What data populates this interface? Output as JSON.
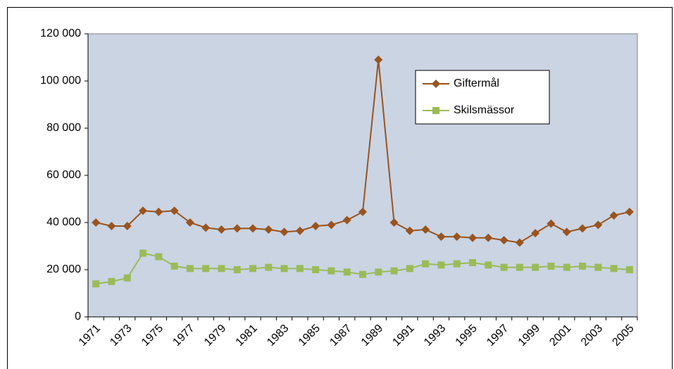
{
  "chart_data": {
    "type": "line",
    "categories": [
      "1971",
      null,
      "1973",
      null,
      "1975",
      null,
      "1977",
      null,
      "1979",
      null,
      "1981",
      null,
      "1983",
      null,
      "1985",
      null,
      "1987",
      null,
      "1989",
      null,
      "1991",
      null,
      "1993",
      null,
      "1995",
      null,
      "1997",
      null,
      "1999",
      null,
      "2001",
      null,
      "2003",
      null,
      "2005"
    ],
    "series": [
      {
        "name": "Giftermål",
        "color": "#99541f",
        "marker": "diamond",
        "values": [
          40000,
          38500,
          38500,
          45000,
          44500,
          45000,
          40000,
          37800,
          37000,
          37500,
          37500,
          37000,
          36000,
          36500,
          38500,
          39000,
          41000,
          44500,
          109000,
          40000,
          36500,
          37000,
          34000,
          34000,
          33500,
          33500,
          32500,
          31500,
          35500,
          39500,
          36000,
          37500,
          39000,
          43000,
          44500
        ]
      },
      {
        "name": "Skilsmässor",
        "color": "#9bbb59",
        "marker": "square",
        "values": [
          14000,
          15000,
          16500,
          27000,
          25500,
          21500,
          20500,
          20500,
          20500,
          20000,
          20500,
          21000,
          20500,
          20500,
          20000,
          19500,
          19000,
          18000,
          19000,
          19500,
          20500,
          22500,
          22000,
          22500,
          23000,
          22000,
          21000,
          21000,
          21000,
          21500,
          21000,
          21500,
          21000,
          20500,
          20000
        ]
      }
    ],
    "ylim": [
      0,
      120000
    ],
    "yticks": [
      0,
      {
        "value": 20000,
        "label": "20 000"
      },
      {
        "value": 40000,
        "label": "40 000"
      },
      {
        "value": 60000,
        "label": "60 000"
      },
      {
        "value": 80000,
        "label": "80 000"
      },
      {
        "value": 100000,
        "label": "100 000"
      },
      {
        "value": 120000,
        "label": "120 000"
      }
    ],
    "grid": false,
    "legend": "upper right",
    "background": "#cad4e3"
  }
}
